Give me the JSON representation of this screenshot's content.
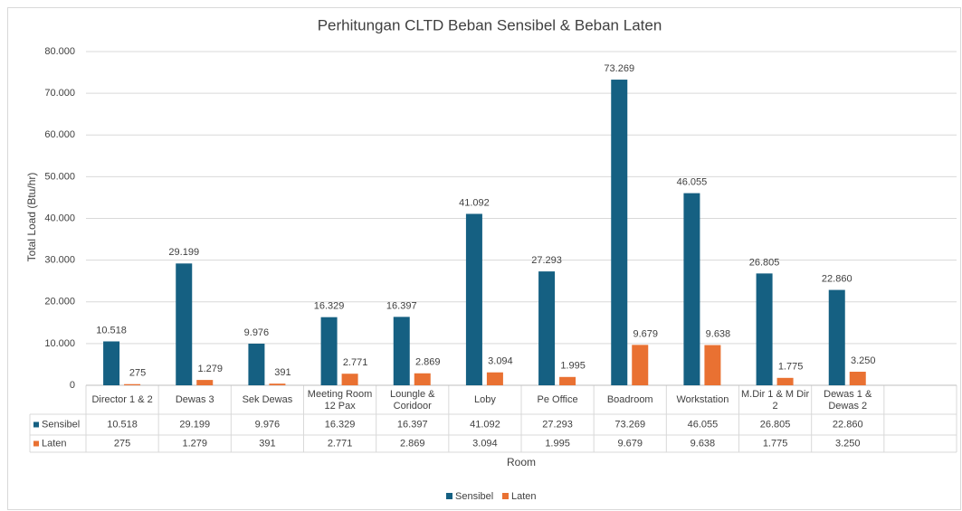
{
  "chart_data": {
    "type": "bar",
    "title": "Perhitungan CLTD Beban Sensibel & Beban Laten",
    "y_label": "Total Load (Btu/hr)",
    "x_label": "Room",
    "categories": [
      "Director 1 & 2",
      "Dewas 3",
      "Sek Dewas",
      "Meeting Room 12 Pax",
      "Loungle & Coridoor",
      "Loby",
      "Pe Office",
      "Boadroom",
      "Workstation",
      "M.Dir 1 & M Dir 2",
      "Dewas 1 & Dewas 2",
      null
    ],
    "series": [
      {
        "name": "Sensibel",
        "color": "#156082",
        "values": [
          10518,
          29199,
          9976,
          16329,
          16397,
          41092,
          27293,
          73269,
          46055,
          26805,
          22860,
          null
        ],
        "value_labels": [
          "10.518",
          "29.199",
          "9.976",
          "16.329",
          "16.397",
          "41.092",
          "27.293",
          "73.269",
          "46.055",
          "26.805",
          "22.860",
          null
        ]
      },
      {
        "name": "Laten",
        "color": "#e97132",
        "values": [
          275,
          1279,
          391,
          2771,
          2869,
          3094,
          1995,
          9679,
          9638,
          1775,
          3250,
          null
        ],
        "value_labels": [
          "275",
          "1.279",
          "391",
          "2.771",
          "2.869",
          "3.094",
          "1.995",
          "9.679",
          "9.638",
          "1.775",
          "3.250",
          null
        ]
      }
    ],
    "ylim": [
      0,
      80000
    ],
    "yticks": [
      0,
      {
        "value": 10000,
        "label": "10.000"
      },
      {
        "value": 20000,
        "label": "20.000"
      },
      {
        "value": 30000,
        "label": "30.000"
      },
      {
        "value": 40000,
        "label": "40.000"
      },
      {
        "value": 50000,
        "label": "50.000"
      },
      {
        "value": 60000,
        "label": "60.000"
      },
      {
        "value": 70000,
        "label": "70.000"
      },
      {
        "value": 80000,
        "label": "80.000"
      }
    ],
    "grid": true,
    "legend": "bottom",
    "data_table": true
  }
}
